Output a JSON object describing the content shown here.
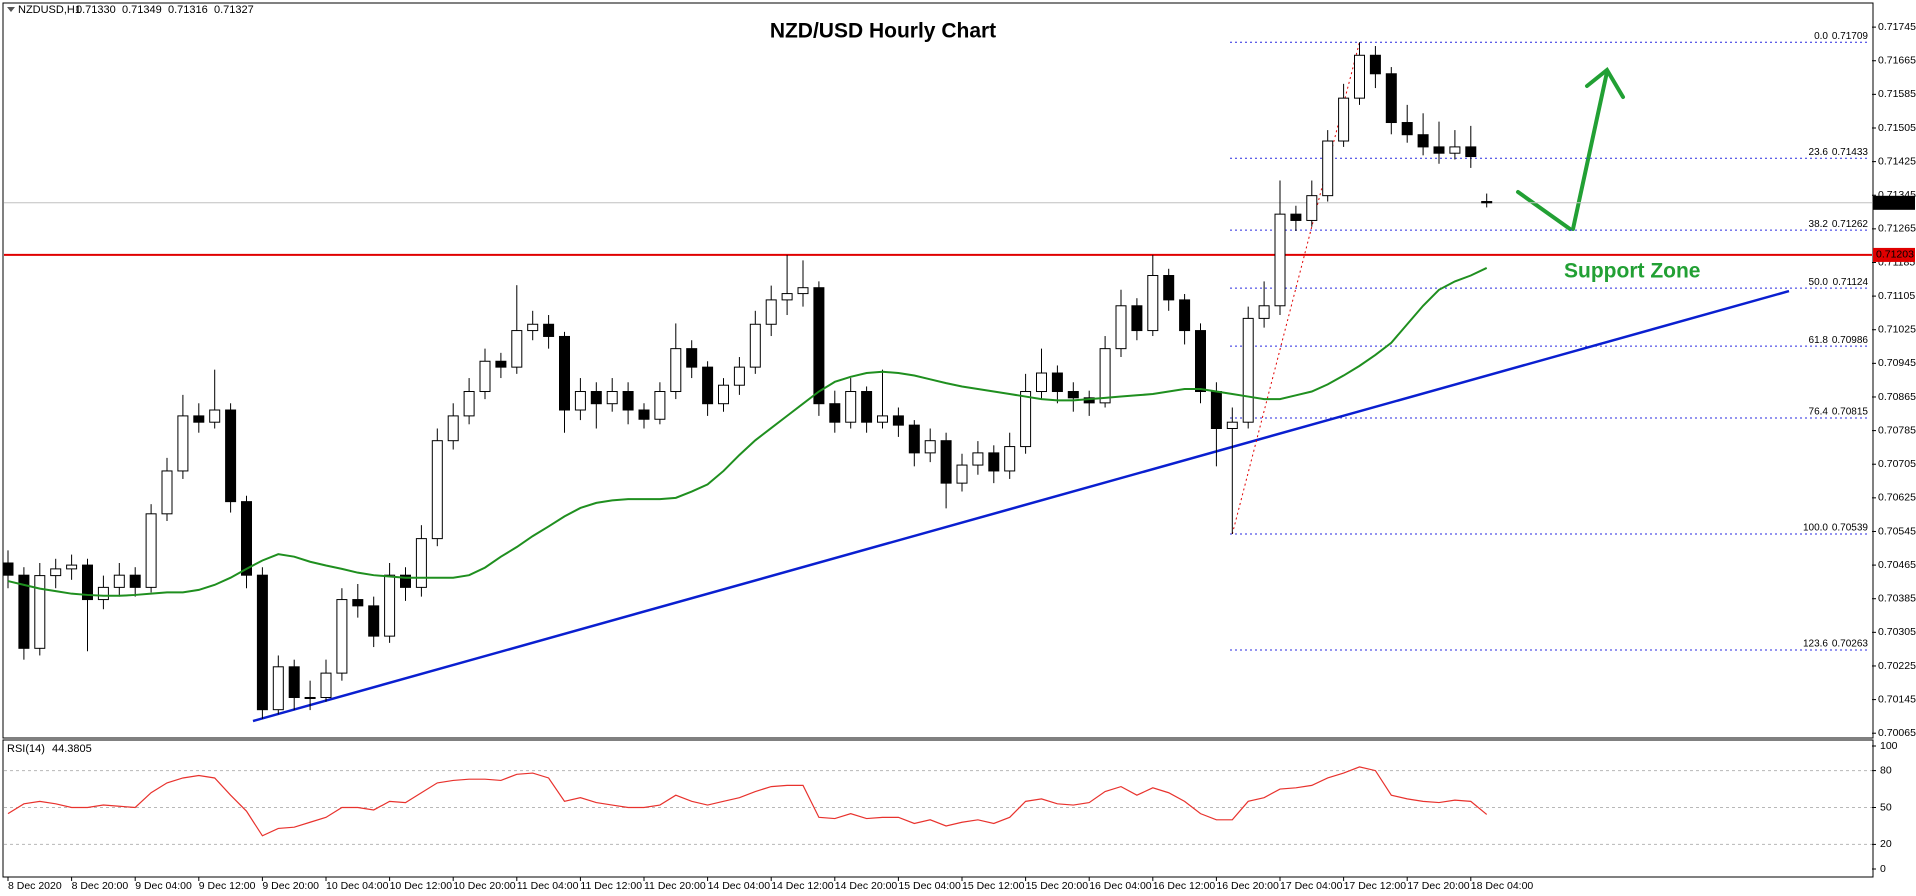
{
  "chart_data": {
    "type": "candlestick",
    "title": "NZD/USD Hourly Chart",
    "header": {
      "symbol": "NZDUSD,H1",
      "ohlc": [
        "0.71330",
        "0.71349",
        "0.71316",
        "0.71327"
      ]
    },
    "annotation": "Support Zone",
    "categories": [
      "8 Dec 2020",
      null,
      null,
      null,
      "8 Dec 20:00",
      null,
      null,
      null,
      "9 Dec 04:00",
      null,
      null,
      null,
      "9 Dec 12:00",
      null,
      null,
      null,
      "9 Dec 20:00",
      null,
      null,
      null,
      "10 Dec 04:00",
      null,
      null,
      null,
      "10 Dec 12:00",
      null,
      null,
      null,
      "10 Dec 20:00",
      null,
      null,
      null,
      "11 Dec 04:00",
      null,
      null,
      null,
      "11 Dec 12:00",
      null,
      null,
      null,
      "11 Dec 20:00",
      null,
      null,
      null,
      "14 Dec 04:00",
      null,
      null,
      null,
      "14 Dec 12:00",
      null,
      null,
      null,
      "14 Dec 20:00",
      null,
      null,
      null,
      "15 Dec 04:00",
      null,
      null,
      null,
      "15 Dec 12:00",
      null,
      null,
      null,
      "15 Dec 20:00",
      null,
      null,
      null,
      "16 Dec 04:00",
      null,
      null,
      null,
      "16 Dec 12:00",
      null,
      null,
      null,
      "16 Dec 20:00",
      null,
      null,
      null,
      "17 Dec 04:00",
      null,
      null,
      null,
      "17 Dec 12:00",
      null,
      null,
      null,
      "17 Dec 20:00",
      null,
      null,
      null,
      "18 Dec 04:00",
      null
    ],
    "candles": [
      [
        0.7047,
        0.705,
        0.7041,
        0.70441
      ],
      [
        0.70441,
        0.7046,
        0.7024,
        0.70267
      ],
      [
        0.70267,
        0.7047,
        0.7025,
        0.7044
      ],
      [
        0.7044,
        0.7048,
        0.7041,
        0.70456
      ],
      [
        0.70456,
        0.7049,
        0.7043,
        0.70465
      ],
      [
        0.70465,
        0.7048,
        0.7026,
        0.70383
      ],
      [
        0.70383,
        0.7044,
        0.7036,
        0.70412
      ],
      [
        0.70412,
        0.7047,
        0.7039,
        0.70441
      ],
      [
        0.70441,
        0.7046,
        0.7039,
        0.70412
      ],
      [
        0.70412,
        0.7061,
        0.704,
        0.70587
      ],
      [
        0.70587,
        0.7072,
        0.7057,
        0.70689
      ],
      [
        0.70689,
        0.7087,
        0.7067,
        0.7082
      ],
      [
        0.7082,
        0.7085,
        0.7078,
        0.70805
      ],
      [
        0.70805,
        0.7093,
        0.7079,
        0.70834
      ],
      [
        0.70834,
        0.7085,
        0.7059,
        0.70616
      ],
      [
        0.70616,
        0.7063,
        0.7041,
        0.70441
      ],
      [
        0.70441,
        0.7046,
        0.70099,
        0.70121
      ],
      [
        0.70121,
        0.7025,
        0.7011,
        0.70223
      ],
      [
        0.70223,
        0.7024,
        0.7012,
        0.7015
      ],
      [
        0.7015,
        0.7019,
        0.7012,
        0.7015
      ],
      [
        0.7015,
        0.7024,
        0.7014,
        0.70208
      ],
      [
        0.70208,
        0.7041,
        0.7019,
        0.70383
      ],
      [
        0.70383,
        0.7042,
        0.7034,
        0.70368
      ],
      [
        0.70368,
        0.7039,
        0.7027,
        0.70296
      ],
      [
        0.70296,
        0.7047,
        0.7028,
        0.70441
      ],
      [
        0.70441,
        0.7046,
        0.7038,
        0.70412
      ],
      [
        0.70412,
        0.7056,
        0.7039,
        0.70528
      ],
      [
        0.70528,
        0.7079,
        0.7051,
        0.70761
      ],
      [
        0.70761,
        0.7085,
        0.7074,
        0.7082
      ],
      [
        0.7082,
        0.7091,
        0.708,
        0.70878
      ],
      [
        0.70878,
        0.7098,
        0.7086,
        0.7095
      ],
      [
        0.7095,
        0.7097,
        0.7091,
        0.70936
      ],
      [
        0.70936,
        0.71131,
        0.7092,
        0.71023
      ],
      [
        0.71023,
        0.7107,
        0.71,
        0.71038
      ],
      [
        0.71038,
        0.7106,
        0.7098,
        0.71009
      ],
      [
        0.71009,
        0.7102,
        0.7078,
        0.70834
      ],
      [
        0.70834,
        0.7091,
        0.7081,
        0.70878
      ],
      [
        0.70878,
        0.709,
        0.7079,
        0.70849
      ],
      [
        0.70849,
        0.7091,
        0.7083,
        0.70878
      ],
      [
        0.70878,
        0.709,
        0.708,
        0.70834
      ],
      [
        0.70834,
        0.7085,
        0.7079,
        0.70812
      ],
      [
        0.70812,
        0.709,
        0.708,
        0.70878
      ],
      [
        0.70878,
        0.7104,
        0.7086,
        0.7098
      ],
      [
        0.7098,
        0.71,
        0.7091,
        0.70936
      ],
      [
        0.70936,
        0.7095,
        0.7082,
        0.70849
      ],
      [
        0.70849,
        0.7091,
        0.7083,
        0.70893
      ],
      [
        0.70893,
        0.7096,
        0.7087,
        0.70936
      ],
      [
        0.70936,
        0.7107,
        0.7092,
        0.71038
      ],
      [
        0.71038,
        0.7113,
        0.7101,
        0.71096
      ],
      [
        0.71096,
        0.71203,
        0.7106,
        0.71111
      ],
      [
        0.71111,
        0.7119,
        0.7108,
        0.71125
      ],
      [
        0.71125,
        0.7114,
        0.7082,
        0.70849
      ],
      [
        0.70849,
        0.7088,
        0.7078,
        0.70805
      ],
      [
        0.70805,
        0.7091,
        0.7079,
        0.70878
      ],
      [
        0.70878,
        0.7089,
        0.7078,
        0.70805
      ],
      [
        0.70805,
        0.7093,
        0.7079,
        0.7082
      ],
      [
        0.7082,
        0.7084,
        0.7077,
        0.70798
      ],
      [
        0.70798,
        0.7081,
        0.707,
        0.70732
      ],
      [
        0.70732,
        0.7079,
        0.7071,
        0.70761
      ],
      [
        0.70761,
        0.7078,
        0.706,
        0.7066
      ],
      [
        0.7066,
        0.7073,
        0.7064,
        0.70703
      ],
      [
        0.70703,
        0.7076,
        0.7068,
        0.70732
      ],
      [
        0.70732,
        0.7075,
        0.7066,
        0.70689
      ],
      [
        0.70689,
        0.7078,
        0.7067,
        0.70747
      ],
      [
        0.70747,
        0.7092,
        0.7073,
        0.70878
      ],
      [
        0.70878,
        0.7098,
        0.7086,
        0.70922
      ],
      [
        0.70922,
        0.7094,
        0.7085,
        0.70878
      ],
      [
        0.70878,
        0.709,
        0.7083,
        0.70863
      ],
      [
        0.70863,
        0.7088,
        0.7082,
        0.70851
      ],
      [
        0.70851,
        0.7101,
        0.7084,
        0.7098
      ],
      [
        0.7098,
        0.7112,
        0.7096,
        0.71082
      ],
      [
        0.71082,
        0.711,
        0.71,
        0.71023
      ],
      [
        0.71023,
        0.71203,
        0.7101,
        0.71154
      ],
      [
        0.71154,
        0.7117,
        0.7107,
        0.71096
      ],
      [
        0.71096,
        0.7111,
        0.7099,
        0.71023
      ],
      [
        0.71023,
        0.7104,
        0.7085,
        0.70878
      ],
      [
        0.70878,
        0.709,
        0.707,
        0.7079
      ],
      [
        0.7079,
        0.7084,
        0.70539,
        0.70805
      ],
      [
        0.70805,
        0.7108,
        0.7079,
        0.71052
      ],
      [
        0.71052,
        0.7114,
        0.7103,
        0.71082
      ],
      [
        0.71082,
        0.7138,
        0.7106,
        0.713
      ],
      [
        0.713,
        0.7132,
        0.7126,
        0.71285
      ],
      [
        0.71285,
        0.7138,
        0.7127,
        0.71344
      ],
      [
        0.71344,
        0.715,
        0.7133,
        0.71474
      ],
      [
        0.71474,
        0.7161,
        0.7146,
        0.71576
      ],
      [
        0.71576,
        0.71709,
        0.7156,
        0.71678
      ],
      [
        0.71678,
        0.717,
        0.716,
        0.71634
      ],
      [
        0.71634,
        0.7165,
        0.7149,
        0.71518
      ],
      [
        0.71518,
        0.7156,
        0.7147,
        0.71489
      ],
      [
        0.71489,
        0.7154,
        0.7144,
        0.7146
      ],
      [
        0.7146,
        0.7152,
        0.7142,
        0.71445
      ],
      [
        0.71445,
        0.715,
        0.7143,
        0.7146
      ],
      [
        0.7146,
        0.7151,
        0.7141,
        0.71437
      ],
      [
        0.7133,
        0.71349,
        0.71316,
        0.71327
      ]
    ],
    "up_color": "#ffffff",
    "down_color": "#000000",
    "wick_color": "#000000",
    "ma": {
      "color": "#1f8f1f",
      "values": [
        0.70427,
        0.70418,
        0.70409,
        0.70403,
        0.70397,
        0.70394,
        0.70392,
        0.70392,
        0.70394,
        0.70397,
        0.704,
        0.704,
        0.70406,
        0.70418,
        0.70435,
        0.70456,
        0.70476,
        0.70491,
        0.70485,
        0.70473,
        0.70464,
        0.70456,
        0.70447,
        0.70441,
        0.70438,
        0.70435,
        0.70435,
        0.70435,
        0.70435,
        0.70441,
        0.70459,
        0.70485,
        0.70508,
        0.70534,
        0.70557,
        0.70581,
        0.70601,
        0.70613,
        0.70619,
        0.70622,
        0.70622,
        0.70622,
        0.70625,
        0.7064,
        0.70657,
        0.70689,
        0.70727,
        0.70762,
        0.70791,
        0.7082,
        0.70849,
        0.70878,
        0.70901,
        0.70913,
        0.70922,
        0.70925,
        0.70922,
        0.70916,
        0.70907,
        0.70898,
        0.7089,
        0.70884,
        0.70878,
        0.70872,
        0.70866,
        0.7086,
        0.70857,
        0.70857,
        0.7086,
        0.70863,
        0.70866,
        0.70869,
        0.70872,
        0.70878,
        0.70884,
        0.70884,
        0.70878,
        0.70872,
        0.70866,
        0.7086,
        0.7086,
        0.70869,
        0.70878,
        0.70895,
        0.70916,
        0.70939,
        0.70965,
        0.70994,
        0.71038,
        0.71082,
        0.7112,
        0.7114,
        0.71154,
        0.71172
      ]
    },
    "ylim": [
      0.70056,
      0.718
    ],
    "yticks": [
      0.71745,
      0.71665,
      0.71585,
      0.71505,
      0.71425,
      0.71345,
      0.71265,
      0.71185,
      0.71105,
      0.71025,
      0.70945,
      0.70865,
      0.70785,
      0.70705,
      0.70625,
      0.70545,
      0.70465,
      0.70385,
      0.70305,
      0.70225,
      0.70145,
      0.70065
    ],
    "current_price": {
      "value": 0.71327,
      "color": "#000000"
    },
    "resistance": {
      "value": 0.71203,
      "color": "#e00000"
    },
    "trendline": {
      "values": [
        0.70094,
        0.71117
      ],
      "color": "#0a1fd0"
    },
    "fib_color": "#2a2ae0",
    "fib": [
      {
        "level": "0.0",
        "price": 0.71709
      },
      {
        "level": "23.6",
        "price": 0.71433
      },
      {
        "level": "38.2",
        "price": 0.71262
      },
      {
        "level": "50.0",
        "price": 0.71124
      },
      {
        "level": "61.8",
        "price": 0.70986
      },
      {
        "level": "76.4",
        "price": 0.70815
      },
      {
        "level": "100.0",
        "price": 0.70539
      },
      {
        "level": "123.6",
        "price": 0.70263
      }
    ],
    "rsi": {
      "name": "RSI(14)",
      "color": "#e8322d",
      "ylim": [
        0,
        100
      ],
      "yticks": [
        100,
        80,
        50,
        20,
        0
      ],
      "levels": [
        80,
        50,
        20
      ],
      "values": [
        45,
        53,
        55,
        53,
        50,
        50,
        52,
        51,
        50,
        62,
        70,
        74,
        76,
        74,
        60,
        47,
        27,
        33,
        34,
        38,
        42,
        50,
        50,
        48,
        55,
        54,
        62,
        70,
        72,
        73,
        73,
        72,
        77,
        78,
        74,
        55,
        58,
        54,
        52,
        50,
        50,
        52,
        60,
        55,
        52,
        55,
        58,
        63,
        67,
        68,
        68,
        42,
        41,
        45,
        41,
        42,
        42,
        37,
        40,
        35,
        38,
        40,
        37,
        42,
        55,
        57,
        53,
        52,
        54,
        63,
        67,
        60,
        66,
        62,
        55,
        45,
        40,
        40,
        55,
        58,
        65,
        66,
        68,
        74,
        78,
        83,
        80,
        60,
        57,
        55,
        54,
        56,
        55,
        44.3805
      ]
    }
  }
}
